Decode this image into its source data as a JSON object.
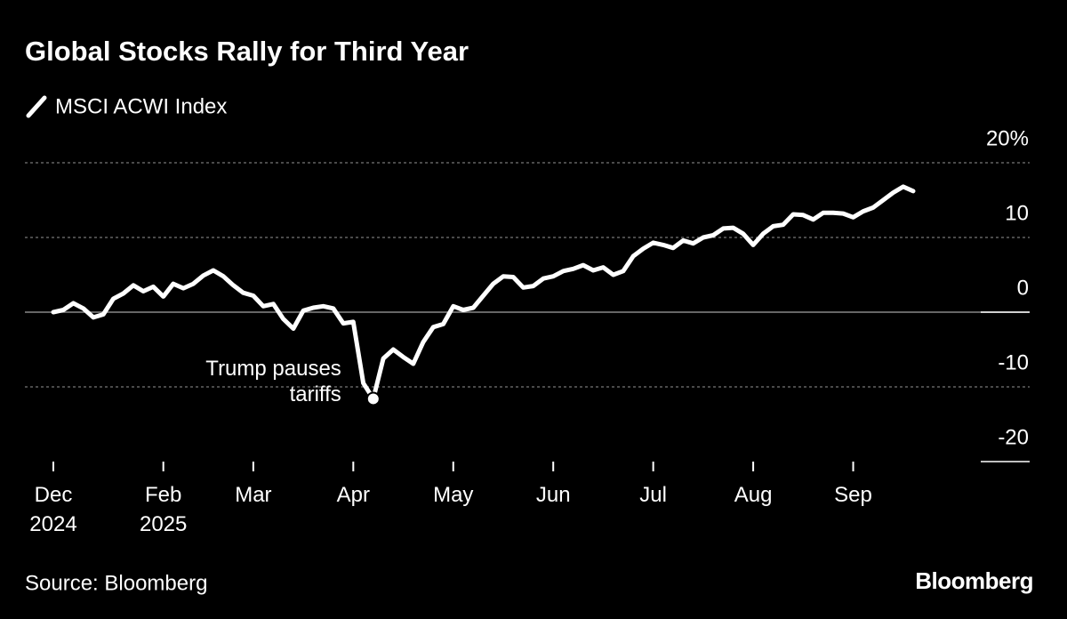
{
  "chart_data": {
    "type": "line",
    "title": "Global Stocks Rally for Third Year",
    "source": "Source: Bloomberg",
    "brand": "Bloomberg",
    "annotation": {
      "lines": [
        "Trump pauses",
        "tariffs"
      ]
    },
    "categories": [
      "Dec 2024",
      null,
      null,
      null,
      null,
      null,
      null,
      null,
      null,
      null,
      null,
      "Feb 2025",
      null,
      null,
      null,
      null,
      null,
      null,
      null,
      null,
      "Mar",
      null,
      null,
      null,
      null,
      null,
      null,
      null,
      null,
      null,
      "Apr",
      null,
      null,
      null,
      null,
      null,
      null,
      null,
      null,
      null,
      "May",
      null,
      null,
      null,
      null,
      null,
      null,
      null,
      null,
      null,
      "Jun",
      null,
      null,
      null,
      null,
      null,
      null,
      null,
      null,
      null,
      "Jul",
      null,
      null,
      null,
      null,
      null,
      null,
      null,
      null,
      null,
      "Aug",
      null,
      null,
      null,
      null,
      null,
      null,
      null,
      null,
      null,
      "Sep",
      null,
      null,
      null,
      null,
      null,
      null
    ],
    "series": [
      {
        "name": "MSCI ACWI Index",
        "color": "#ffffff",
        "values": [
          0,
          0.3,
          1.2,
          0.5,
          -0.7,
          -0.3,
          1.8,
          2.5,
          3.6,
          2.8,
          3.4,
          2.1,
          3.8,
          3.2,
          3.8,
          4.9,
          5.6,
          4.8,
          3.6,
          2.6,
          2.2,
          0.8,
          1.1,
          -0.9,
          -2.2,
          0.2,
          0.6,
          0.8,
          0.5,
          -1.5,
          -1.3,
          -9.5,
          -11.6,
          -6.2,
          -5.0,
          -6.0,
          -6.9,
          -4.0,
          -2.0,
          -1.6,
          0.8,
          0.3,
          0.6,
          2.2,
          3.8,
          4.8,
          4.7,
          3.3,
          3.5,
          4.5,
          4.8,
          5.5,
          5.8,
          6.3,
          5.6,
          6.0,
          5.0,
          5.5,
          7.5,
          8.5,
          9.3,
          9.0,
          8.6,
          9.6,
          9.2,
          10.0,
          10.3,
          11.2,
          11.3,
          10.5,
          9.0,
          10.5,
          11.5,
          11.7,
          13.1,
          13.0,
          12.4,
          13.3,
          13.3,
          13.2,
          12.7,
          13.5,
          14.0,
          15.0,
          16.0,
          16.8,
          16.2
        ]
      }
    ],
    "ylim": [
      -20,
      20
    ],
    "yticks": [
      {
        "value": 20,
        "label": "20%"
      },
      10,
      0,
      -10,
      -20
    ],
    "grid": true
  }
}
